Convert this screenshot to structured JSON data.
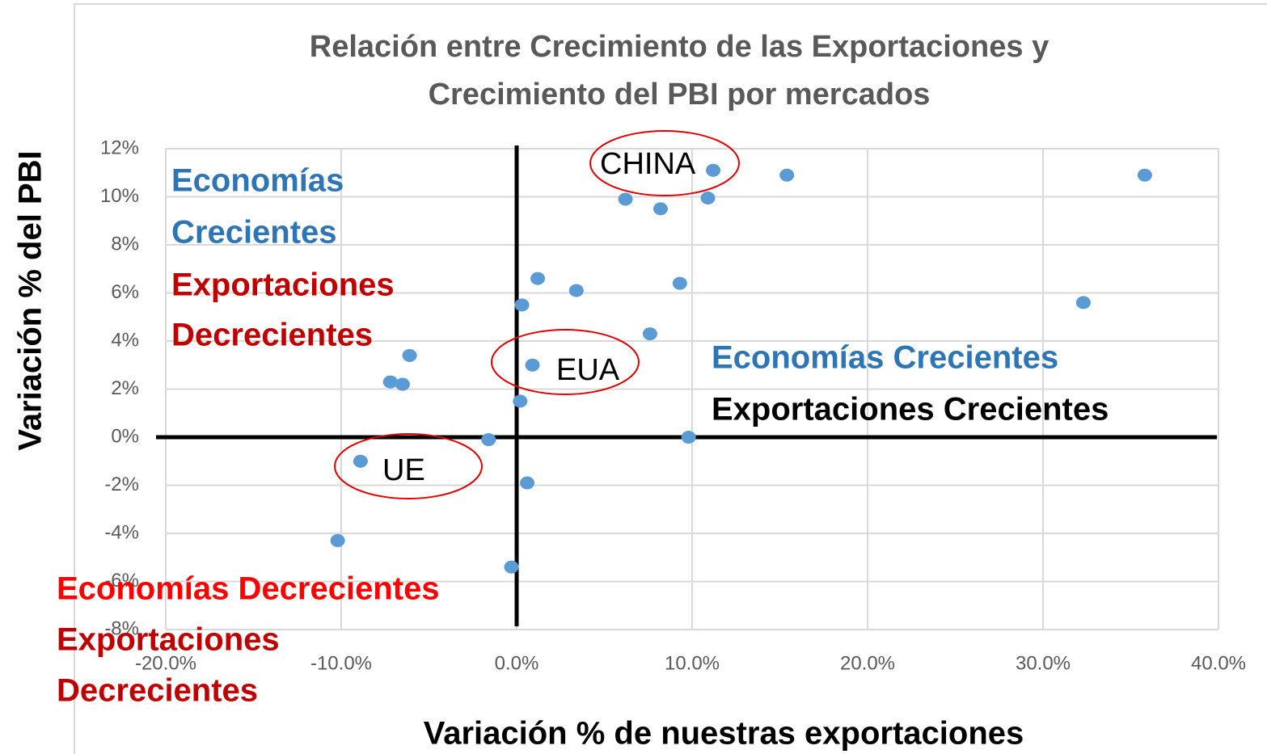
{
  "chart_data": {
    "type": "scatter",
    "title": [
      "Relación entre Crecimiento de las Exportaciones y",
      "Crecimiento del PBI por mercados"
    ],
    "x_label": "Variación % de nuestras exportaciones",
    "y_label": "Variación % del PBI",
    "color": "#5b9bd5",
    "grid": true,
    "x": [
      35.8,
      15.4,
      11.2,
      10.9,
      6.2,
      8.2,
      1.2,
      3.4,
      9.3,
      0.3,
      32.3,
      7.6,
      -6.1,
      0.9,
      -7.2,
      -6.5,
      0.2,
      9.8,
      -1.6,
      -8.9,
      0.6,
      -10.2,
      -0.3
    ],
    "values": [
      10.9,
      10.9,
      11.1,
      9.95,
      9.9,
      9.5,
      6.6,
      6.1,
      6.4,
      5.5,
      5.6,
      4.3,
      3.4,
      3.0,
      2.3,
      2.2,
      1.5,
      0,
      -0.1,
      -1.0,
      -1.9,
      -4.3,
      -5.4
    ],
    "xlim": [
      -20,
      40
    ],
    "ylim": [
      -8,
      12
    ],
    "xticks": [
      {
        "value": -20,
        "label": "-20.0%"
      },
      {
        "value": -10,
        "label": "-10.0%"
      },
      {
        "value": 0,
        "label": "0.0%"
      },
      {
        "value": 10,
        "label": "10.0%"
      },
      {
        "value": 20,
        "label": "20.0%"
      },
      {
        "value": 30,
        "label": "30.0%"
      },
      {
        "value": 40,
        "label": "40.0%"
      }
    ],
    "yticks": [
      {
        "value": -8,
        "label": "-8%"
      },
      {
        "value": -6,
        "label": "-6%"
      },
      {
        "value": -4,
        "label": "-4%"
      },
      {
        "value": -2,
        "label": "-2%"
      },
      {
        "value": 0,
        "label": "0%"
      },
      {
        "value": 2,
        "label": "2%"
      },
      {
        "value": 4,
        "label": "4%"
      },
      {
        "value": 6,
        "label": "6%"
      },
      {
        "value": 8,
        "label": "8%"
      },
      {
        "value": 10,
        "label": "10%"
      },
      {
        "value": 12,
        "label": "12%"
      }
    ],
    "annotations": [
      {
        "text": "CHINA"
      },
      {
        "text": "EUA"
      },
      {
        "text": "UE"
      },
      {
        "text": "Economías",
        "color": "#2e75b6"
      },
      {
        "text": "Crecientes",
        "color": "#2e75b6"
      },
      {
        "text": "Exportaciones",
        "color": "#c00000"
      },
      {
        "text": "Decrecientes",
        "color": "#c00000"
      },
      {
        "text": "Economías Crecientes",
        "color": "#2e75b6"
      },
      {
        "text": "Exportaciones Crecientes",
        "color": "#000000"
      },
      {
        "text": "Economías Decrecientes",
        "color": "#ff0000"
      },
      {
        "text": "Exportaciones",
        "color": "#c00000"
      },
      {
        "text": "Decrecientes",
        "color": "#c00000"
      }
    ]
  }
}
